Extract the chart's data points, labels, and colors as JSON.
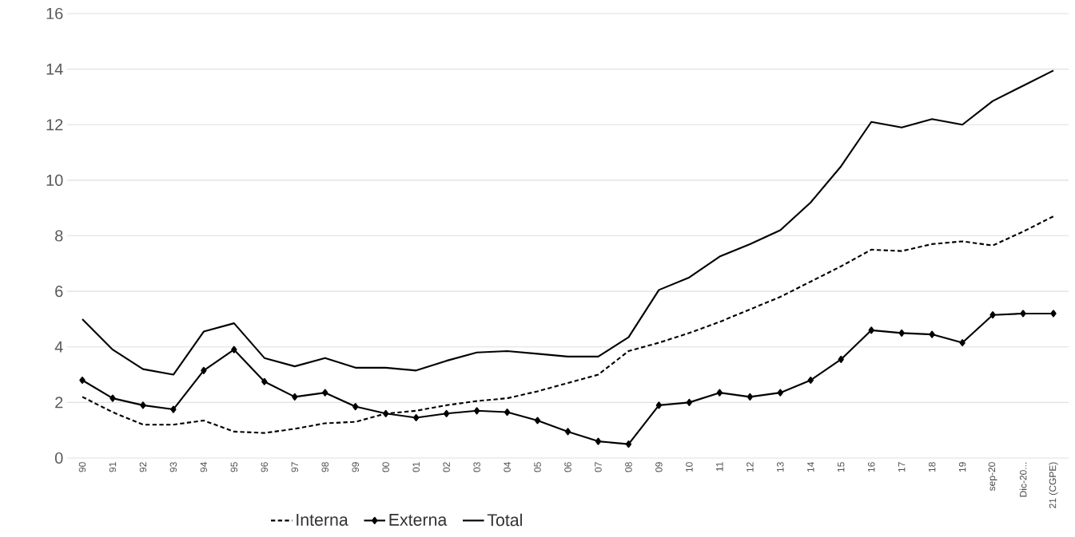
{
  "chart_data": {
    "type": "line",
    "categories": [
      "90",
      "91",
      "92",
      "93",
      "94",
      "95",
      "96",
      "97",
      "98",
      "99",
      "00",
      "01",
      "02",
      "03",
      "04",
      "05",
      "06",
      "07",
      "08",
      "09",
      "10",
      "11",
      "12",
      "13",
      "14",
      "15",
      "16",
      "17",
      "18",
      "19",
      "sep-20",
      "Dic-20...",
      "21 (CGPE)"
    ],
    "series": [
      {
        "name": "Interna",
        "color": "#000000",
        "line_style": "dashed",
        "marker": "none",
        "values": [
          2.2,
          1.65,
          1.2,
          1.2,
          1.35,
          0.95,
          0.9,
          1.05,
          1.25,
          1.3,
          1.6,
          1.7,
          1.9,
          2.05,
          2.15,
          2.4,
          2.7,
          3.0,
          3.85,
          4.15,
          4.5,
          4.9,
          5.35,
          5.8,
          6.35,
          6.9,
          7.5,
          7.45,
          7.7,
          7.8,
          7.65,
          8.15,
          8.7
        ]
      },
      {
        "name": "Externa",
        "color": "#000000",
        "line_style": "solid",
        "marker": "diamond",
        "values": [
          2.8,
          2.15,
          1.9,
          1.75,
          3.15,
          3.9,
          2.75,
          2.2,
          2.35,
          1.85,
          1.6,
          1.45,
          1.6,
          1.7,
          1.65,
          1.35,
          0.95,
          0.6,
          0.5,
          1.9,
          2.0,
          2.35,
          2.2,
          2.35,
          2.8,
          3.55,
          4.6,
          4.5,
          4.45,
          4.15,
          5.15,
          5.2,
          5.2
        ]
      },
      {
        "name": "Total",
        "color": "#000000",
        "line_style": "solid",
        "marker": "none",
        "values": [
          5.0,
          3.9,
          3.2,
          3.0,
          4.55,
          4.85,
          3.6,
          3.3,
          3.6,
          3.25,
          3.25,
          3.15,
          3.5,
          3.8,
          3.85,
          3.75,
          3.65,
          3.65,
          4.35,
          6.05,
          6.5,
          7.25,
          7.7,
          8.2,
          9.2,
          10.5,
          12.1,
          11.9,
          12.2,
          12.0,
          12.85,
          13.4,
          13.95
        ]
      }
    ],
    "ylim": [
      0,
      16
    ],
    "yticks": [
      0,
      2,
      4,
      6,
      8,
      10,
      12,
      14,
      16
    ],
    "grid": "y",
    "legend": "bottom"
  }
}
